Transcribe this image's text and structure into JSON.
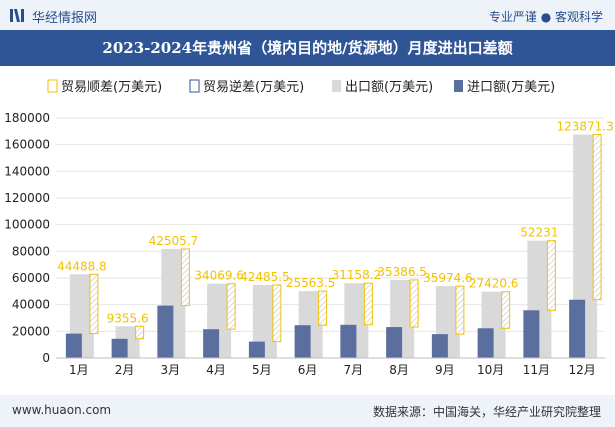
{
  "header": {
    "brand": "华经情报网",
    "tagline": "专业严谨 ● 客观科学"
  },
  "chart_data": {
    "type": "bar",
    "title": "2023-2024年贵州省（境内目的地/货源地）月度进出口差额",
    "categories": [
      "1月",
      "2月",
      "3月",
      "4月",
      "5月",
      "6月",
      "7月",
      "8月",
      "9月",
      "10月",
      "11月",
      "12月"
    ],
    "series": [
      {
        "name": "贸易顺差(万美元)",
        "values": [
          44488.8,
          9355.6,
          42505.7,
          34069.6,
          42485.5,
          25563.5,
          31158.2,
          35386.5,
          35974.6,
          27420.6,
          52231,
          123871.3
        ],
        "color": "#f2c200"
      },
      {
        "name": "贸易逆差(万美元)",
        "values": [
          0,
          0,
          0,
          0,
          0,
          0,
          0,
          0,
          0,
          0,
          0,
          0
        ],
        "color": "#2f5597"
      },
      {
        "name": "出口额(万美元)",
        "values": [
          62800,
          23800,
          81800,
          55700,
          54800,
          50200,
          56100,
          58600,
          53900,
          49700,
          88000,
          167600
        ],
        "color": "#d9d9d9"
      },
      {
        "name": "进口额(万美元)",
        "values": [
          18300,
          14400,
          39300,
          21600,
          12300,
          24600,
          24900,
          23200,
          17900,
          22300,
          35800,
          43700
        ],
        "color": "#5b6f9e"
      }
    ],
    "data_labels": [
      "44488.8",
      "9355.6",
      "42505.7",
      "34069.6",
      "42485.5",
      "25563.5",
      "31158.2",
      "35386.5",
      "35974.6",
      "27420.6",
      "52231",
      "123871.3"
    ],
    "ylim": [
      0,
      180000
    ],
    "yticks": [
      0,
      20000,
      40000,
      60000,
      80000,
      100000,
      120000,
      140000,
      160000,
      180000
    ],
    "legend_position": "top",
    "grid": true
  },
  "footer": {
    "website": "www.huaon.com",
    "source": "数据来源：中国海关，华经产业研究院整理"
  }
}
